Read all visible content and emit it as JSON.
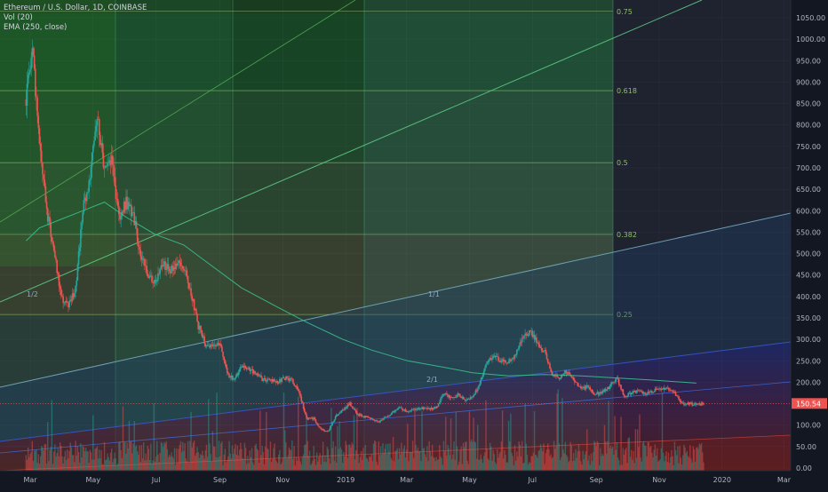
{
  "legend": {
    "symbol": "Ethereum / U.S. Dollar, 1D, COINBASE",
    "volume": "Vol (20)",
    "ema": "EMA (250, close)"
  },
  "chart_data": {
    "type": "candlestick",
    "symbol": "ETHUSD",
    "exchange": "COINBASE",
    "interval": "1D",
    "date_range": [
      "2018-02-25",
      "2019-12-15"
    ],
    "x_ticks": [
      "Mar",
      "May",
      "Jul",
      "Sep",
      "Nov",
      "2019",
      "Mar",
      "May",
      "Jul",
      "Sep",
      "Nov",
      "2020",
      "Mar"
    ],
    "x_tick_dates": [
      "2018-03-01",
      "2018-05-01",
      "2018-07-01",
      "2018-09-01",
      "2018-11-01",
      "2019-01-01",
      "2019-03-01",
      "2019-05-01",
      "2019-07-01",
      "2019-09-01",
      "2019-11-01",
      "2020-01-01",
      "2020-03-01"
    ],
    "ylim": [
      -10,
      1100
    ],
    "y_ticks": [
      0,
      50,
      100,
      150,
      200,
      250,
      300,
      350,
      400,
      450,
      500,
      550,
      600,
      650,
      700,
      750,
      800,
      850,
      900,
      950,
      1000,
      1050
    ],
    "y_tick_labels": [
      "0.00",
      "50.00",
      "100.00",
      "150.00",
      "200.00",
      "250.00",
      "300.00",
      "350.00",
      "400.00",
      "450.00",
      "500.00",
      "550.00",
      "600.00",
      "650.00",
      "700.00",
      "750.00",
      "800.00",
      "850.00",
      "900.00",
      "950.00",
      "1000.00",
      "1050.00"
    ],
    "last_price": 150.54,
    "last_price_label": "150.54",
    "up_color": "#26a69a",
    "down_color": "#ef5350",
    "ema_color": "#3bbf8f",
    "price_path": [
      [
        "2018-02-25",
        860
      ],
      [
        "2018-03-03",
        980
      ],
      [
        "2018-03-10",
        750
      ],
      [
        "2018-03-17",
        600
      ],
      [
        "2018-03-24",
        510
      ],
      [
        "2018-03-31",
        400
      ],
      [
        "2018-04-07",
        375
      ],
      [
        "2018-04-14",
        420
      ],
      [
        "2018-04-21",
        600
      ],
      [
        "2018-04-28",
        680
      ],
      [
        "2018-05-05",
        820
      ],
      [
        "2018-05-12",
        700
      ],
      [
        "2018-05-19",
        720
      ],
      [
        "2018-05-26",
        580
      ],
      [
        "2018-06-02",
        620
      ],
      [
        "2018-06-09",
        590
      ],
      [
        "2018-06-16",
        500
      ],
      [
        "2018-06-23",
        450
      ],
      [
        "2018-06-30",
        430
      ],
      [
        "2018-07-07",
        480
      ],
      [
        "2018-07-14",
        460
      ],
      [
        "2018-07-21",
        480
      ],
      [
        "2018-07-28",
        470
      ],
      [
        "2018-08-04",
        410
      ],
      [
        "2018-08-11",
        330
      ],
      [
        "2018-08-18",
        290
      ],
      [
        "2018-08-25",
        280
      ],
      [
        "2018-09-01",
        290
      ],
      [
        "2018-09-08",
        220
      ],
      [
        "2018-09-15",
        205
      ],
      [
        "2018-09-22",
        240
      ],
      [
        "2018-09-29",
        230
      ],
      [
        "2018-10-06",
        220
      ],
      [
        "2018-10-13",
        205
      ],
      [
        "2018-10-20",
        205
      ],
      [
        "2018-10-27",
        200
      ],
      [
        "2018-11-03",
        210
      ],
      [
        "2018-11-10",
        205
      ],
      [
        "2018-11-17",
        175
      ],
      [
        "2018-11-24",
        115
      ],
      [
        "2018-12-01",
        115
      ],
      [
        "2018-12-08",
        90
      ],
      [
        "2018-12-15",
        85
      ],
      [
        "2018-12-22",
        120
      ],
      [
        "2018-12-29",
        135
      ],
      [
        "2019-01-05",
        150
      ],
      [
        "2019-01-12",
        125
      ],
      [
        "2019-01-19",
        120
      ],
      [
        "2019-01-26",
        115
      ],
      [
        "2019-02-02",
        108
      ],
      [
        "2019-02-09",
        118
      ],
      [
        "2019-02-16",
        130
      ],
      [
        "2019-02-23",
        140
      ],
      [
        "2019-03-02",
        132
      ],
      [
        "2019-03-09",
        136
      ],
      [
        "2019-03-16",
        140
      ],
      [
        "2019-03-23",
        137
      ],
      [
        "2019-03-30",
        142
      ],
      [
        "2019-04-06",
        175
      ],
      [
        "2019-04-13",
        165
      ],
      [
        "2019-04-20",
        170
      ],
      [
        "2019-04-27",
        158
      ],
      [
        "2019-05-04",
        165
      ],
      [
        "2019-05-11",
        195
      ],
      [
        "2019-05-18",
        250
      ],
      [
        "2019-05-25",
        260
      ],
      [
        "2019-06-01",
        250
      ],
      [
        "2019-06-08",
        245
      ],
      [
        "2019-06-15",
        265
      ],
      [
        "2019-06-22",
        305
      ],
      [
        "2019-06-29",
        320
      ],
      [
        "2019-07-06",
        290
      ],
      [
        "2019-07-13",
        270
      ],
      [
        "2019-07-20",
        220
      ],
      [
        "2019-07-27",
        210
      ],
      [
        "2019-08-03",
        225
      ],
      [
        "2019-08-10",
        205
      ],
      [
        "2019-08-17",
        185
      ],
      [
        "2019-08-24",
        190
      ],
      [
        "2019-08-31",
        172
      ],
      [
        "2019-09-07",
        178
      ],
      [
        "2019-09-14",
        190
      ],
      [
        "2019-09-21",
        210
      ],
      [
        "2019-09-28",
        168
      ],
      [
        "2019-10-05",
        175
      ],
      [
        "2019-10-12",
        180
      ],
      [
        "2019-10-19",
        172
      ],
      [
        "2019-10-26",
        180
      ],
      [
        "2019-11-02",
        185
      ],
      [
        "2019-11-09",
        188
      ],
      [
        "2019-11-16",
        175
      ],
      [
        "2019-11-23",
        150
      ],
      [
        "2019-11-30",
        150
      ],
      [
        "2019-12-07",
        148
      ],
      [
        "2019-12-14",
        150
      ]
    ],
    "ema_path": [
      [
        "2018-02-25",
        530
      ],
      [
        "2018-03-10",
        560
      ],
      [
        "2018-03-31",
        580
      ],
      [
        "2018-04-21",
        600
      ],
      [
        "2018-05-12",
        620
      ],
      [
        "2018-06-02",
        585
      ],
      [
        "2018-06-30",
        545
      ],
      [
        "2018-07-28",
        520
      ],
      [
        "2018-08-25",
        470
      ],
      [
        "2018-09-22",
        420
      ],
      [
        "2018-10-27",
        375
      ],
      [
        "2018-11-24",
        340
      ],
      [
        "2018-12-29",
        300
      ],
      [
        "2019-01-26",
        275
      ],
      [
        "2019-03-02",
        250
      ],
      [
        "2019-04-06",
        235
      ],
      [
        "2019-05-04",
        222
      ],
      [
        "2019-06-08",
        215
      ],
      [
        "2019-07-13",
        218
      ],
      [
        "2019-08-17",
        215
      ],
      [
        "2019-09-21",
        210
      ],
      [
        "2019-10-26",
        205
      ],
      [
        "2019-12-07",
        198
      ]
    ],
    "fib_levels": [
      {
        "label": "0.75",
        "value": 1065
      },
      {
        "label": "0.618",
        "value": 880
      },
      {
        "label": "0.5",
        "value": 712
      },
      {
        "label": "0.382",
        "value": 545
      },
      {
        "label": "0.25",
        "value": 358
      }
    ],
    "fan_labels": [
      "1/2",
      "1/1",
      "2/1"
    ],
    "grid": true
  }
}
